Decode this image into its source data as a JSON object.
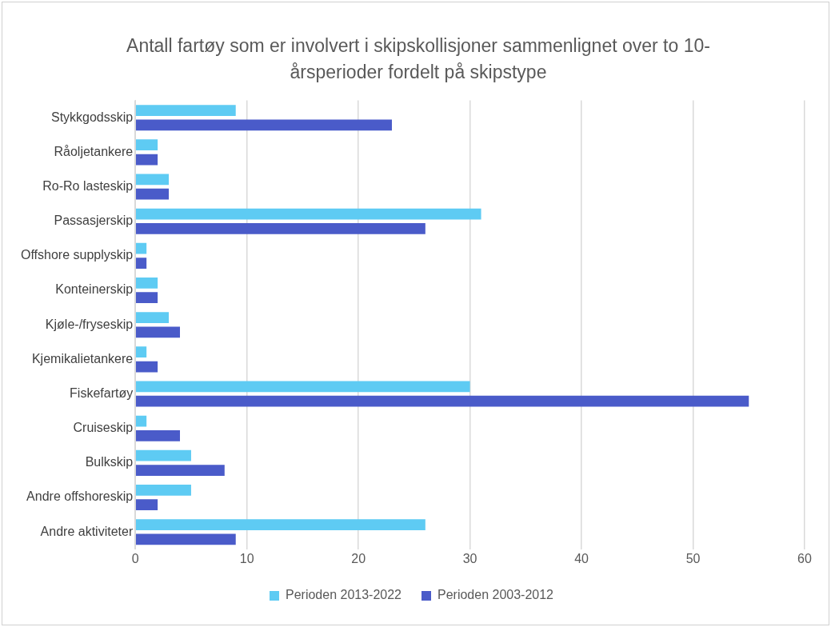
{
  "chart_data": {
    "type": "bar",
    "orientation": "horizontal",
    "title": "Antall fartøy som er involvert i skipskollisjoner sammenlignet over to 10-årsperioder fordelt på skipstype",
    "categories": [
      "Stykkgodsskip",
      "Råoljetankere",
      "Ro-Ro lasteskip",
      "Passasjerskip",
      "Offshore supplyskip",
      "Konteinerskip",
      "Kjøle-/fryseskip",
      "Kjemikalietankere",
      "Fiskefartøy",
      "Cruiseskip",
      "Bulkskip",
      "Andre offshoreskip",
      "Andre aktiviteter"
    ],
    "series": [
      {
        "name": "Perioden 2013-2022",
        "color": "#5ecbf3",
        "values": [
          9,
          2,
          3,
          31,
          1,
          2,
          3,
          1,
          30,
          1,
          5,
          5,
          26
        ]
      },
      {
        "name": "Perioden 2003-2012",
        "color": "#4a5bc9",
        "values": [
          23,
          2,
          3,
          26,
          1,
          2,
          4,
          2,
          55,
          4,
          8,
          2,
          9
        ]
      }
    ],
    "xlim": [
      0,
      60
    ],
    "xticks": [
      0,
      10,
      20,
      30,
      40,
      50,
      60
    ],
    "grid": "x",
    "legend": "bottom"
  }
}
